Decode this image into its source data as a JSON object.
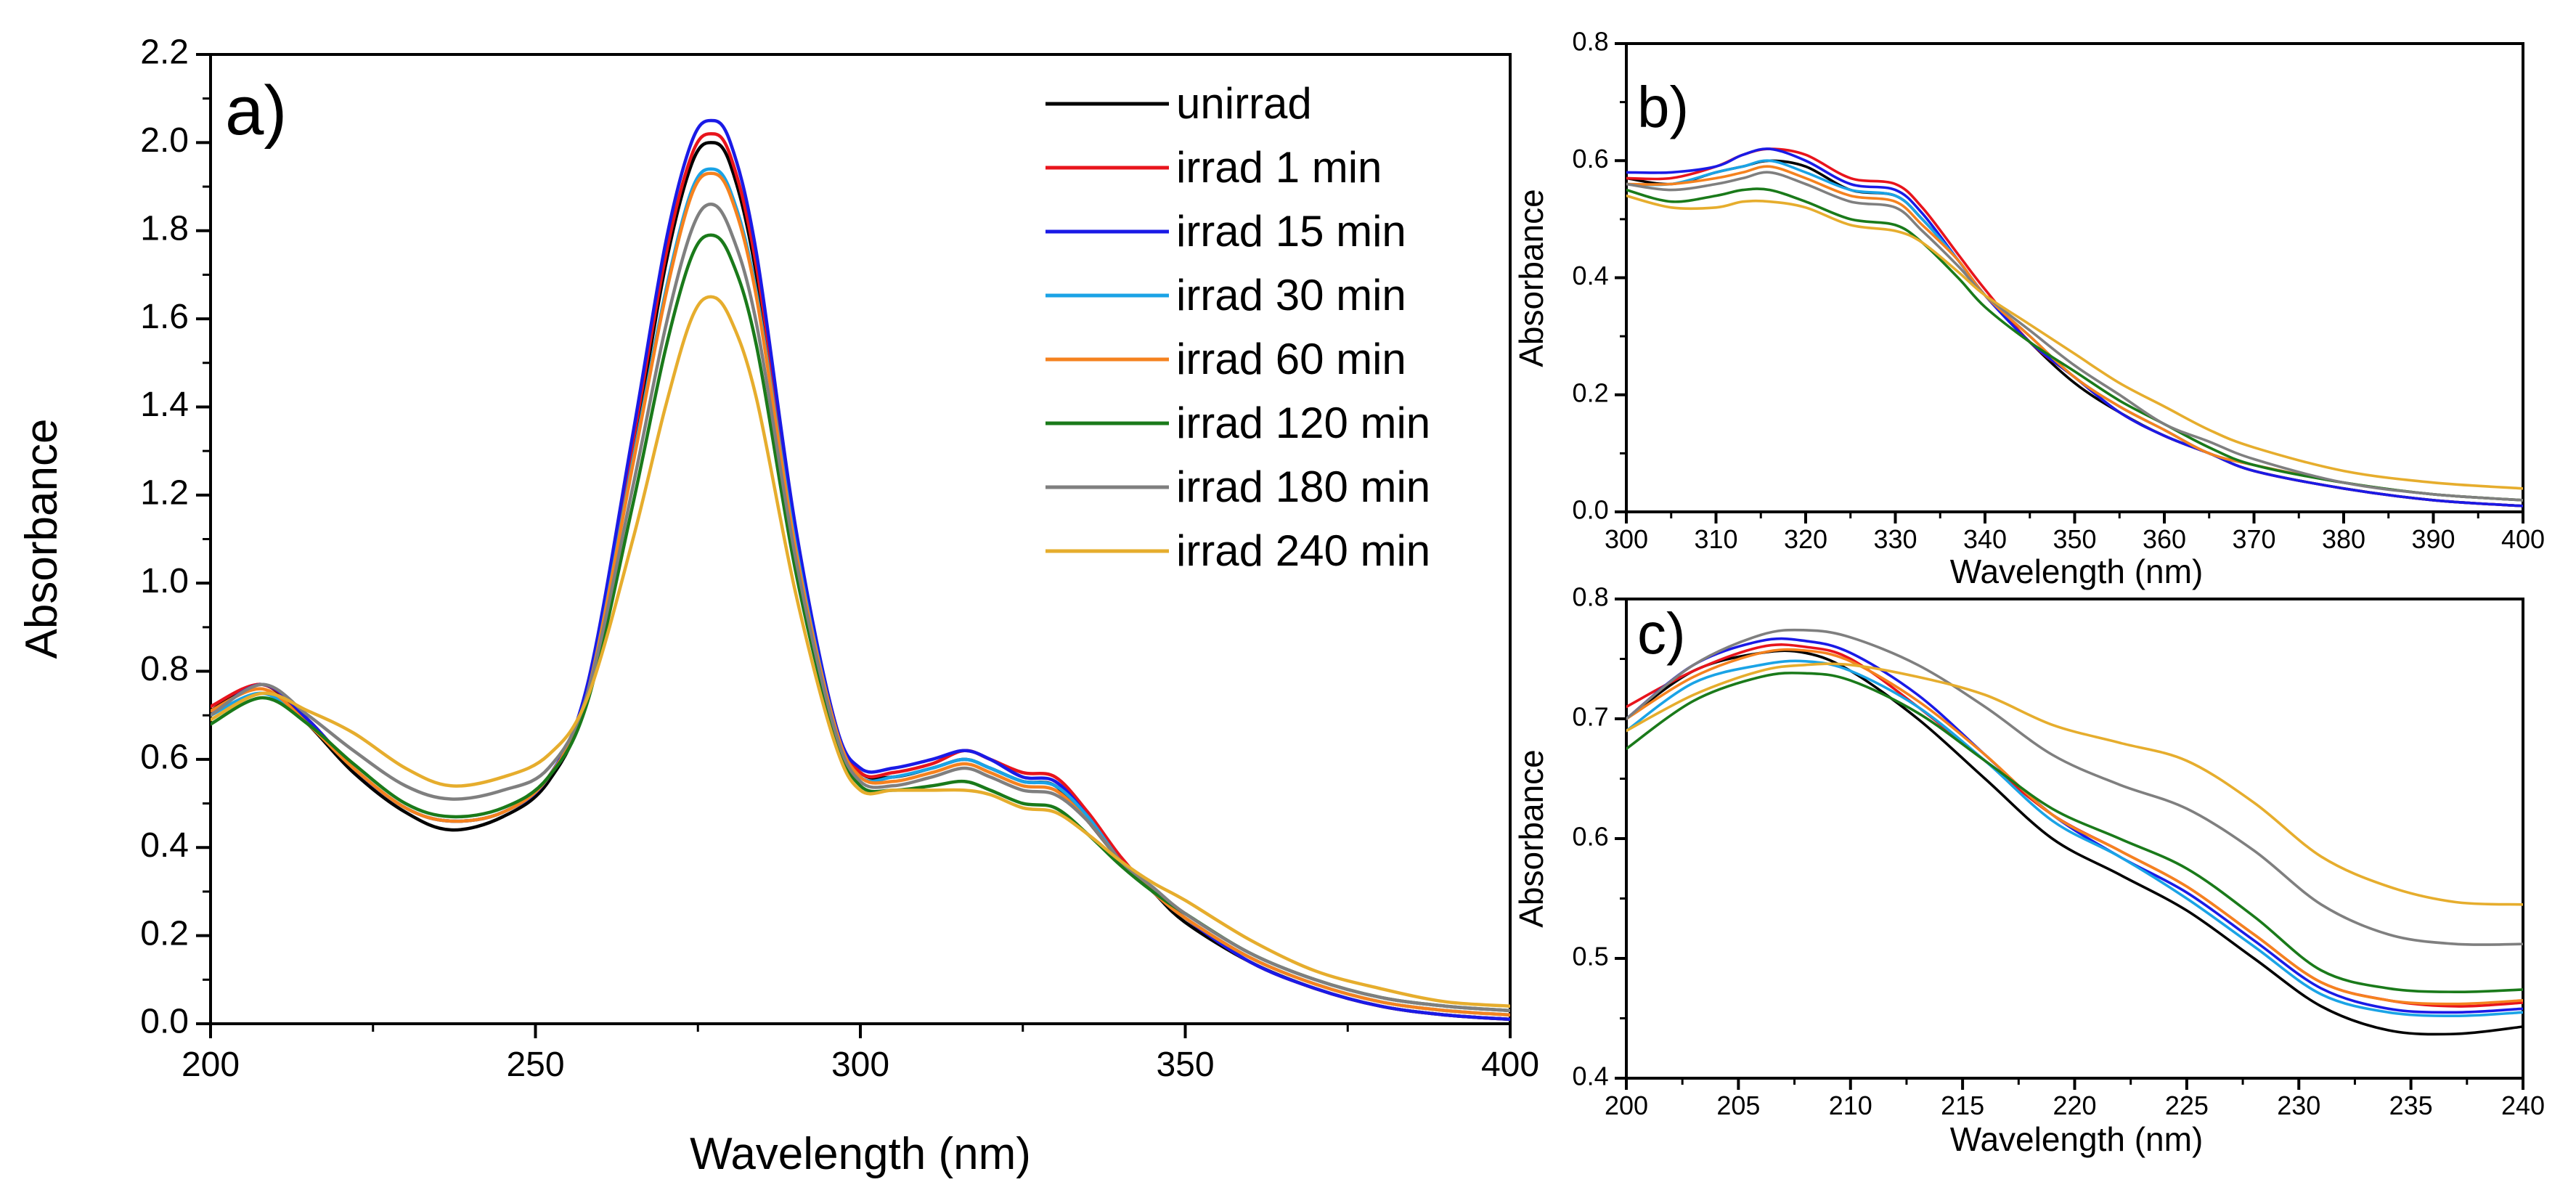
{
  "series_colors": {
    "unirrad": "#000000",
    "irrad 1 min": "#e8141c",
    "irrad 15 min": "#1a1ae6",
    "irrad 30 min": "#1aa3e6",
    "irrad 60 min": "#f5821f",
    "irrad 120 min": "#1a7a1a",
    "irrad 180 min": "#7f7f7f",
    "irrad 240 min": "#e6ad2d"
  },
  "chart_data": [
    {
      "panel": "a)",
      "type": "line",
      "xlabel": "Wavelength (nm)",
      "ylabel": "Absorbance",
      "xlim": [
        200,
        400
      ],
      "ylim": [
        0.0,
        2.2
      ],
      "xticks": [
        "200",
        "250",
        "300",
        "350",
        "400"
      ],
      "yticks": [
        "0.0",
        "0.2",
        "0.4",
        "0.6",
        "0.8",
        "1.0",
        "1.2",
        "1.4",
        "1.6",
        "1.8",
        "2.0",
        "2.2"
      ],
      "legend_position": "top-right",
      "x": [
        200,
        208,
        215,
        222,
        230,
        237,
        245,
        252,
        258,
        265,
        270,
        274,
        277,
        280,
        284,
        290,
        296,
        300,
        305,
        311,
        316,
        320,
        325,
        330,
        335,
        340,
        345,
        350,
        360,
        370,
        380,
        390,
        400
      ],
      "series": [
        {
          "name": "unirrad",
          "values": [
            0.71,
            0.77,
            0.68,
            0.57,
            0.48,
            0.44,
            0.47,
            0.55,
            0.75,
            1.3,
            1.72,
            1.95,
            2.0,
            1.95,
            1.7,
            1.1,
            0.68,
            0.57,
            0.56,
            0.58,
            0.6,
            0.58,
            0.55,
            0.54,
            0.46,
            0.37,
            0.3,
            0.23,
            0.14,
            0.08,
            0.04,
            0.02,
            0.01
          ]
        },
        {
          "name": "irrad 1 min",
          "values": [
            0.72,
            0.77,
            0.69,
            0.58,
            0.49,
            0.46,
            0.48,
            0.56,
            0.76,
            1.32,
            1.74,
            1.97,
            2.02,
            1.97,
            1.72,
            1.12,
            0.69,
            0.57,
            0.57,
            0.59,
            0.62,
            0.6,
            0.57,
            0.56,
            0.48,
            0.38,
            0.3,
            0.24,
            0.14,
            0.08,
            0.04,
            0.02,
            0.01
          ]
        },
        {
          "name": "irrad 15 min",
          "values": [
            0.7,
            0.77,
            0.69,
            0.58,
            0.49,
            0.46,
            0.48,
            0.56,
            0.77,
            1.34,
            1.77,
            2.0,
            2.05,
            2.0,
            1.75,
            1.13,
            0.69,
            0.58,
            0.58,
            0.6,
            0.62,
            0.6,
            0.56,
            0.55,
            0.47,
            0.37,
            0.3,
            0.24,
            0.14,
            0.08,
            0.04,
            0.02,
            0.01
          ]
        },
        {
          "name": "irrad 30 min",
          "values": [
            0.7,
            0.75,
            0.68,
            0.58,
            0.49,
            0.46,
            0.48,
            0.56,
            0.75,
            1.28,
            1.66,
            1.89,
            1.94,
            1.89,
            1.66,
            1.09,
            0.68,
            0.56,
            0.56,
            0.58,
            0.6,
            0.58,
            0.55,
            0.54,
            0.47,
            0.37,
            0.3,
            0.24,
            0.15,
            0.09,
            0.05,
            0.03,
            0.02
          ]
        },
        {
          "name": "irrad 60 min",
          "values": [
            0.71,
            0.76,
            0.68,
            0.58,
            0.49,
            0.46,
            0.48,
            0.56,
            0.75,
            1.27,
            1.65,
            1.88,
            1.93,
            1.88,
            1.65,
            1.08,
            0.68,
            0.56,
            0.55,
            0.57,
            0.59,
            0.57,
            0.54,
            0.53,
            0.46,
            0.37,
            0.3,
            0.24,
            0.15,
            0.09,
            0.05,
            0.03,
            0.02
          ]
        },
        {
          "name": "irrad 120 min",
          "values": [
            0.68,
            0.74,
            0.68,
            0.59,
            0.5,
            0.47,
            0.49,
            0.56,
            0.73,
            1.18,
            1.53,
            1.74,
            1.79,
            1.74,
            1.54,
            1.03,
            0.66,
            0.54,
            0.53,
            0.54,
            0.55,
            0.53,
            0.5,
            0.49,
            0.43,
            0.36,
            0.3,
            0.25,
            0.16,
            0.1,
            0.06,
            0.04,
            0.03
          ]
        },
        {
          "name": "irrad 180 min",
          "values": [
            0.7,
            0.77,
            0.7,
            0.62,
            0.54,
            0.51,
            0.53,
            0.58,
            0.75,
            1.22,
            1.58,
            1.8,
            1.86,
            1.8,
            1.59,
            1.06,
            0.67,
            0.55,
            0.54,
            0.56,
            0.58,
            0.56,
            0.53,
            0.52,
            0.46,
            0.37,
            0.31,
            0.25,
            0.16,
            0.1,
            0.06,
            0.04,
            0.03
          ]
        },
        {
          "name": "irrad 240 min",
          "values": [
            0.69,
            0.75,
            0.71,
            0.66,
            0.58,
            0.54,
            0.56,
            0.61,
            0.74,
            1.1,
            1.4,
            1.6,
            1.65,
            1.6,
            1.42,
            0.98,
            0.64,
            0.53,
            0.53,
            0.53,
            0.53,
            0.52,
            0.49,
            0.48,
            0.43,
            0.37,
            0.32,
            0.28,
            0.19,
            0.12,
            0.08,
            0.05,
            0.04
          ]
        }
      ],
      "legend": [
        "unirrad",
        "irrad 1 min",
        "irrad 15 min",
        "irrad 30 min",
        "irrad 60 min",
        "irrad 120 min",
        "irrad 180 min",
        "irrad 240 min"
      ]
    },
    {
      "panel": "b)",
      "type": "line",
      "xlabel": "Wavelength (nm)",
      "ylabel": "Absorbance",
      "xlim": [
        300,
        400
      ],
      "ylim": [
        0.0,
        0.8
      ],
      "xticks": [
        "300",
        "310",
        "320",
        "330",
        "340",
        "350",
        "360",
        "370",
        "380",
        "390",
        "400"
      ],
      "yticks": [
        "0.0",
        "0.2",
        "0.4",
        "0.6",
        "0.8"
      ],
      "x": [
        300,
        305,
        310,
        313,
        316,
        320,
        325,
        330,
        333,
        337,
        340,
        345,
        350,
        355,
        360,
        365,
        370,
        380,
        390,
        400
      ],
      "series": [
        {
          "name": "unirrad",
          "values": [
            0.57,
            0.56,
            0.58,
            0.59,
            0.6,
            0.59,
            0.55,
            0.54,
            0.5,
            0.43,
            0.37,
            0.29,
            0.22,
            0.17,
            0.13,
            0.1,
            0.07,
            0.04,
            0.02,
            0.01
          ]
        },
        {
          "name": "irrad 1 min",
          "values": [
            0.57,
            0.57,
            0.59,
            0.61,
            0.62,
            0.61,
            0.57,
            0.56,
            0.52,
            0.44,
            0.38,
            0.29,
            0.23,
            0.17,
            0.13,
            0.1,
            0.07,
            0.04,
            0.02,
            0.01
          ]
        },
        {
          "name": "irrad 15 min",
          "values": [
            0.58,
            0.58,
            0.59,
            0.61,
            0.62,
            0.6,
            0.56,
            0.55,
            0.51,
            0.43,
            0.37,
            0.29,
            0.23,
            0.17,
            0.13,
            0.1,
            0.07,
            0.04,
            0.02,
            0.01
          ]
        },
        {
          "name": "irrad 30 min",
          "values": [
            0.56,
            0.56,
            0.58,
            0.59,
            0.6,
            0.58,
            0.55,
            0.54,
            0.5,
            0.43,
            0.37,
            0.3,
            0.23,
            0.18,
            0.14,
            0.1,
            0.08,
            0.05,
            0.03,
            0.02
          ]
        },
        {
          "name": "irrad 60 min",
          "values": [
            0.56,
            0.56,
            0.57,
            0.58,
            0.59,
            0.57,
            0.54,
            0.53,
            0.49,
            0.43,
            0.37,
            0.3,
            0.23,
            0.18,
            0.14,
            0.1,
            0.08,
            0.05,
            0.03,
            0.02
          ]
        },
        {
          "name": "irrad 120 min",
          "values": [
            0.55,
            0.53,
            0.54,
            0.55,
            0.55,
            0.53,
            0.5,
            0.49,
            0.46,
            0.4,
            0.35,
            0.29,
            0.24,
            0.19,
            0.15,
            0.11,
            0.08,
            0.05,
            0.03,
            0.02
          ]
        },
        {
          "name": "irrad 180 min",
          "values": [
            0.56,
            0.55,
            0.56,
            0.57,
            0.58,
            0.56,
            0.53,
            0.52,
            0.48,
            0.42,
            0.37,
            0.31,
            0.25,
            0.2,
            0.15,
            0.12,
            0.09,
            0.05,
            0.03,
            0.02
          ]
        },
        {
          "name": "irrad 240 min",
          "values": [
            0.54,
            0.52,
            0.52,
            0.53,
            0.53,
            0.52,
            0.49,
            0.48,
            0.46,
            0.41,
            0.37,
            0.32,
            0.27,
            0.22,
            0.18,
            0.14,
            0.11,
            0.07,
            0.05,
            0.04
          ]
        }
      ]
    },
    {
      "panel": "c)",
      "type": "line",
      "xlabel": "Wavelength (nm)",
      "ylabel": "Absorbance",
      "xlim": [
        200,
        240
      ],
      "ylim": [
        0.4,
        0.8
      ],
      "xticks": [
        "200",
        "205",
        "210",
        "215",
        "220",
        "225",
        "230",
        "235",
        "240"
      ],
      "yticks": [
        "0.4",
        "0.5",
        "0.6",
        "0.7",
        "0.8"
      ],
      "x": [
        200,
        203,
        206,
        208,
        210,
        213,
        216,
        219,
        222,
        225,
        228,
        231,
        234,
        237,
        240
      ],
      "series": [
        {
          "name": "unirrad",
          "values": [
            0.7,
            0.74,
            0.755,
            0.755,
            0.74,
            0.7,
            0.65,
            0.6,
            0.57,
            0.54,
            0.5,
            0.46,
            0.44,
            0.437,
            0.443
          ]
        },
        {
          "name": "irrad 1 min",
          "values": [
            0.71,
            0.74,
            0.76,
            0.76,
            0.75,
            0.71,
            0.665,
            0.62,
            0.59,
            0.56,
            0.52,
            0.48,
            0.465,
            0.46,
            0.463
          ]
        },
        {
          "name": "irrad 15 min",
          "values": [
            0.7,
            0.745,
            0.765,
            0.765,
            0.755,
            0.72,
            0.67,
            0.62,
            0.585,
            0.555,
            0.515,
            0.475,
            0.458,
            0.455,
            0.458
          ]
        },
        {
          "name": "irrad 30 min",
          "values": [
            0.69,
            0.73,
            0.745,
            0.748,
            0.74,
            0.71,
            0.665,
            0.615,
            0.585,
            0.55,
            0.51,
            0.47,
            0.455,
            0.452,
            0.455
          ]
        },
        {
          "name": "irrad 60 min",
          "values": [
            0.7,
            0.735,
            0.755,
            0.757,
            0.748,
            0.715,
            0.67,
            0.62,
            0.59,
            0.56,
            0.52,
            0.48,
            0.465,
            0.462,
            0.465
          ]
        },
        {
          "name": "irrad 120 min",
          "values": [
            0.675,
            0.715,
            0.735,
            0.738,
            0.732,
            0.705,
            0.665,
            0.625,
            0.6,
            0.575,
            0.535,
            0.49,
            0.475,
            0.472,
            0.474
          ]
        },
        {
          "name": "irrad 180 min",
          "values": [
            0.7,
            0.745,
            0.77,
            0.774,
            0.768,
            0.745,
            0.71,
            0.67,
            0.645,
            0.625,
            0.59,
            0.545,
            0.52,
            0.512,
            0.512
          ]
        },
        {
          "name": "irrad 240 min",
          "values": [
            0.69,
            0.72,
            0.74,
            0.745,
            0.745,
            0.735,
            0.72,
            0.695,
            0.68,
            0.665,
            0.63,
            0.585,
            0.56,
            0.547,
            0.545
          ]
        }
      ]
    }
  ]
}
